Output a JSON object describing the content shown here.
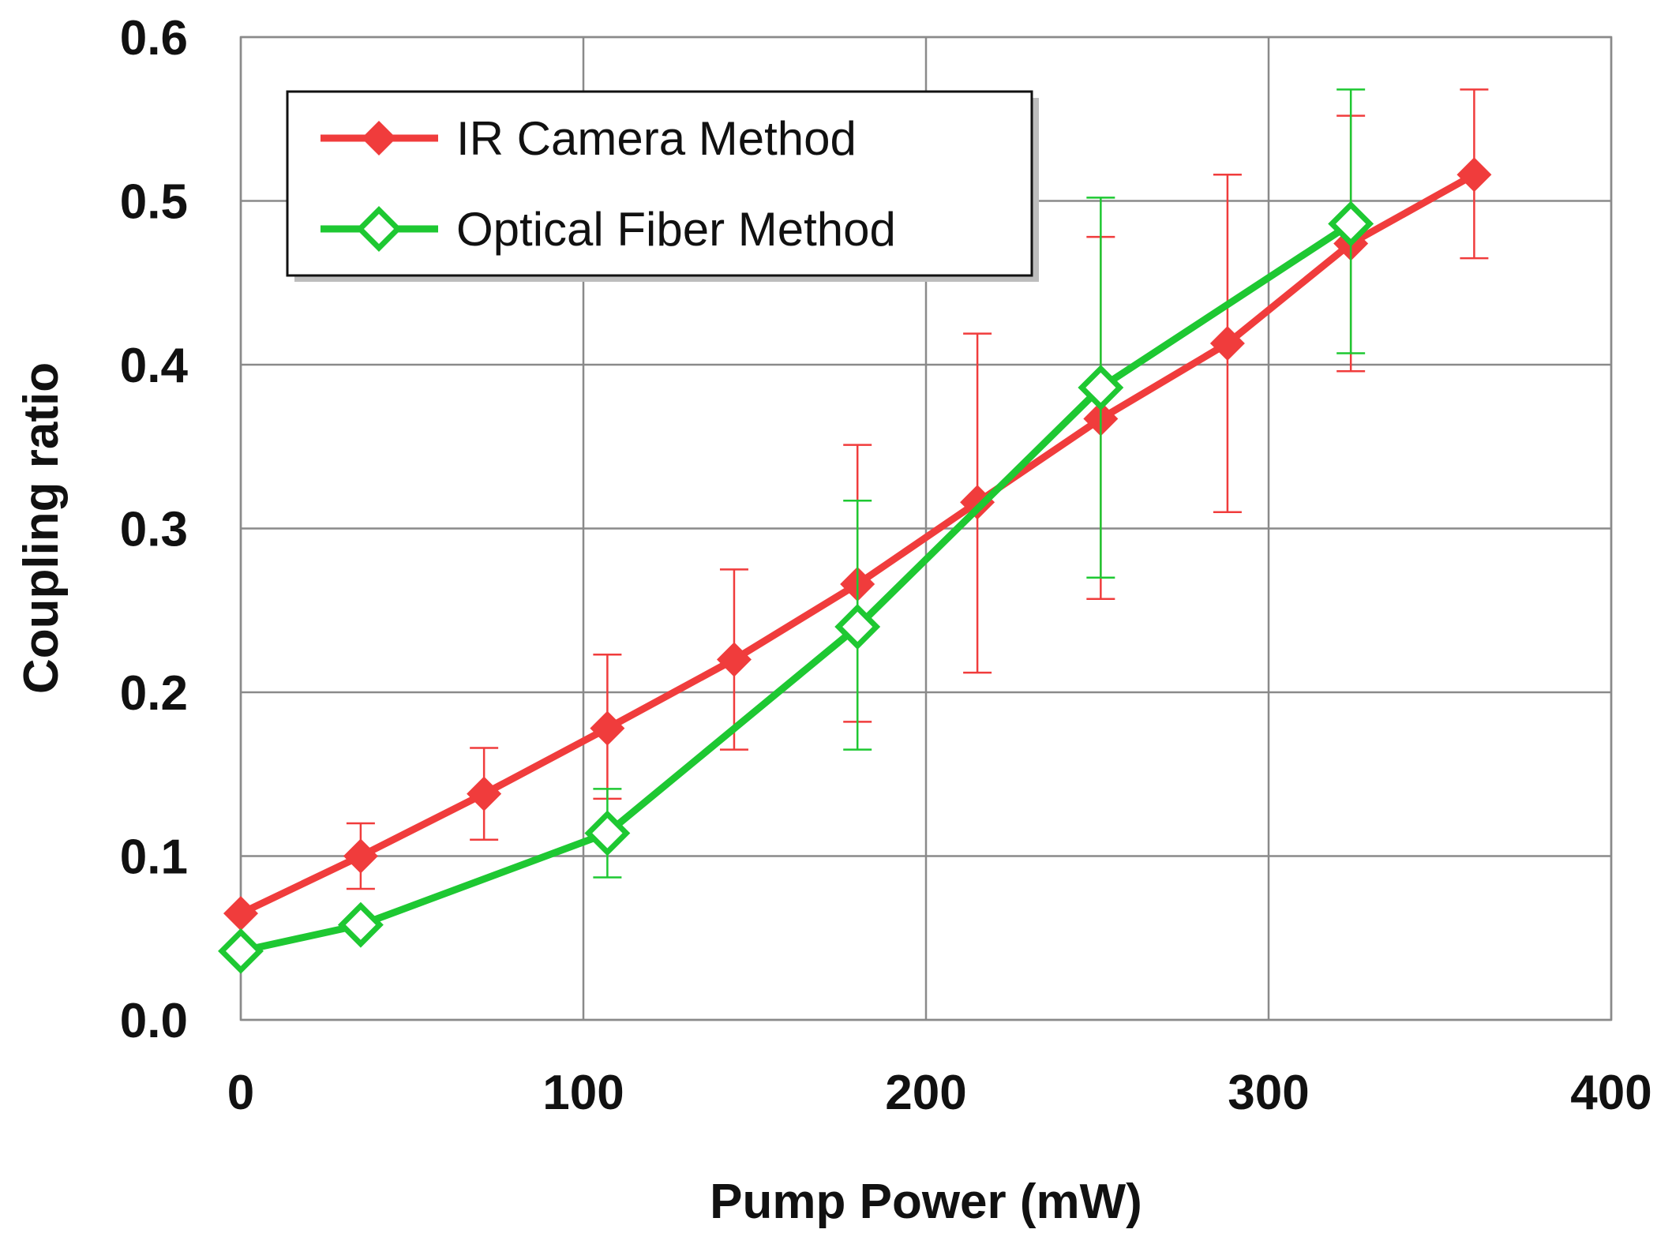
{
  "chart_data": {
    "type": "line",
    "title": "",
    "xlabel": "Pump Power (mW)",
    "ylabel": "Coupling ratio",
    "xlim": [
      0,
      400
    ],
    "ylim": [
      0,
      0.6
    ],
    "xticks": [
      0,
      100,
      200,
      300,
      400
    ],
    "xtick_labels": [
      "0",
      "100",
      "200",
      "300",
      "400"
    ],
    "yticks": [
      0,
      0.1,
      0.2,
      0.3,
      0.4,
      0.5,
      0.6
    ],
    "ytick_labels": [
      "0.0",
      "0.1",
      "0.2",
      "0.3",
      "0.4",
      "0.5",
      "0.6"
    ],
    "grid": true,
    "legend_position": "top-left",
    "series": [
      {
        "name": "IR Camera Method",
        "color": "#f03c3c",
        "marker": "filled-diamond",
        "x": [
          0,
          35,
          71,
          107,
          144,
          180,
          215,
          251,
          288,
          324,
          360
        ],
        "y": [
          0.065,
          0.1,
          0.138,
          0.178,
          0.22,
          0.266,
          0.316,
          0.367,
          0.413,
          0.474,
          0.516
        ],
        "err_low": [
          null,
          0.02,
          0.028,
          0.043,
          0.055,
          0.084,
          0.104,
          0.11,
          0.103,
          0.078,
          0.051
        ],
        "err_high": [
          null,
          0.02,
          0.028,
          0.045,
          0.055,
          0.085,
          0.103,
          0.111,
          0.103,
          0.078,
          0.052
        ]
      },
      {
        "name": "Optical Fiber Method",
        "color": "#1ec832",
        "marker": "open-diamond",
        "x": [
          0,
          35,
          107,
          180,
          251,
          324
        ],
        "y": [
          0.042,
          0.058,
          0.114,
          0.24,
          0.386,
          0.486
        ],
        "err_low": [
          null,
          null,
          0.027,
          0.075,
          0.116,
          0.079
        ],
        "err_high": [
          null,
          null,
          0.027,
          0.077,
          0.116,
          0.082
        ]
      }
    ]
  }
}
